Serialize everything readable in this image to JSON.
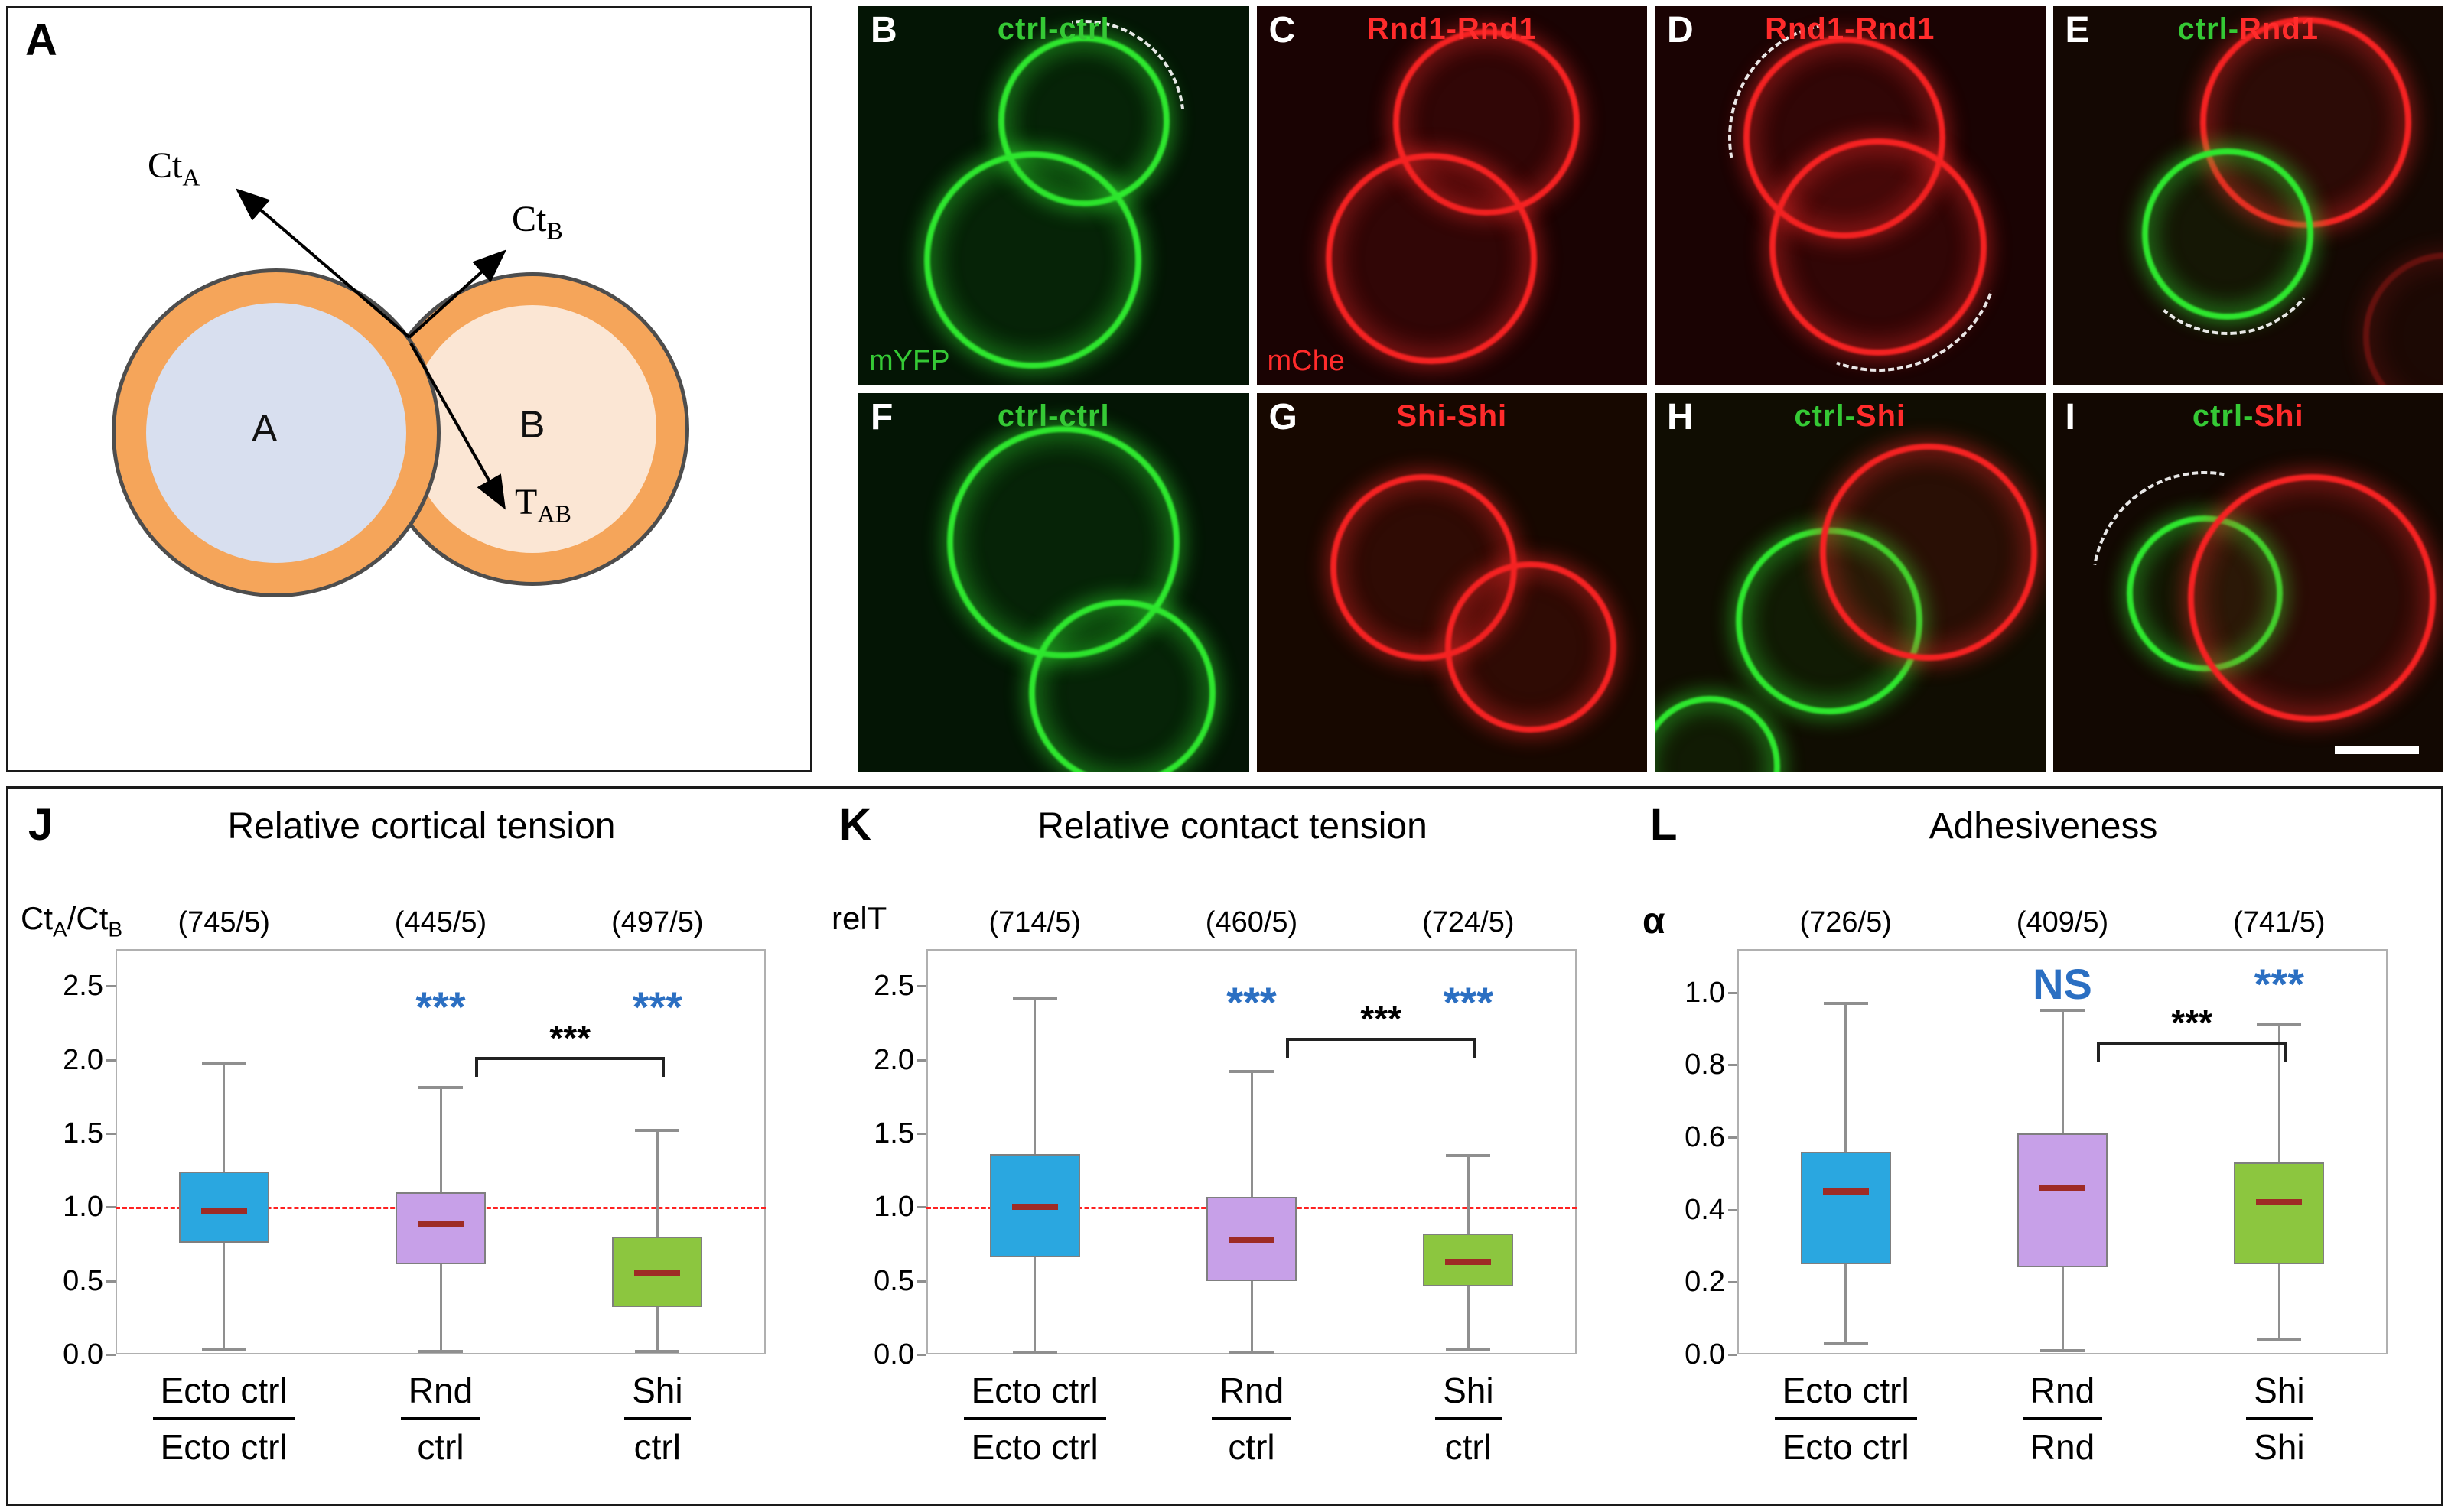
{
  "diagram": {
    "panel_letter": "A",
    "cell_a_label": "A",
    "cell_b_label": "B",
    "arrow_labels": {
      "ct_a": {
        "main": "Ct",
        "sub": "A"
      },
      "ct_b": {
        "main": "Ct",
        "sub": "B"
      },
      "t_ab": {
        "main": "T",
        "sub": "AB"
      }
    }
  },
  "micro_panels": [
    {
      "letter": "B",
      "caption_parts": [
        {
          "text": "ctrl-ctrl",
          "color": "#35C935"
        }
      ],
      "corner_label": {
        "text": "mYFP",
        "color": "#35C935"
      }
    },
    {
      "letter": "C",
      "caption_parts": [
        {
          "text": "Rnd1-Rnd1",
          "color": "#FF2B2B"
        }
      ],
      "corner_label": {
        "text": "mChe",
        "color": "#FF2B2B"
      }
    },
    {
      "letter": "D",
      "caption_parts": [
        {
          "text": "Rnd1-Rnd1",
          "color": "#FF2B2B"
        }
      ]
    },
    {
      "letter": "E",
      "caption_parts": [
        {
          "text": "ctrl",
          "color": "#35C935"
        },
        {
          "text": "-",
          "color": "#35C935"
        },
        {
          "text": "Rnd1",
          "color": "#FF2B2B"
        }
      ]
    },
    {
      "letter": "F",
      "caption_parts": [
        {
          "text": "ctrl-ctrl",
          "color": "#35C935"
        }
      ]
    },
    {
      "letter": "G",
      "caption_parts": [
        {
          "text": "Shi-Shi",
          "color": "#FF2B2B"
        }
      ]
    },
    {
      "letter": "H",
      "caption_parts": [
        {
          "text": "ctrl",
          "color": "#35C935"
        },
        {
          "text": "-",
          "color": "#35C935"
        },
        {
          "text": "Shi",
          "color": "#FF2B2B"
        }
      ]
    },
    {
      "letter": "I",
      "caption_parts": [
        {
          "text": "ctrl",
          "color": "#35C935"
        },
        {
          "text": "-",
          "color": "#35C935"
        },
        {
          "text": "Shi",
          "color": "#FF2B2B"
        }
      ],
      "has_scalebar": true
    }
  ],
  "style": {
    "sig_blue": "#2B6FC2",
    "median_red": "#9E2B25",
    "ref_red": "#FF2222",
    "box_blue": "#2AA7E0",
    "box_purple": "#C7A0E8",
    "box_green": "#8CC63F"
  },
  "chart_data": [
    {
      "id": "J",
      "panel_label": "J",
      "type": "box",
      "title": "Relative cortical tension",
      "ylabel_parts": [
        {
          "text": "Ct"
        },
        {
          "text": "A",
          "sub": true
        },
        {
          "text": "/Ct"
        },
        {
          "text": "B",
          "sub": true
        }
      ],
      "ylabel_bold": false,
      "ylim": [
        0,
        2.75
      ],
      "yticks": [
        0.0,
        0.5,
        1.0,
        1.5,
        2.0,
        2.5
      ],
      "reference_line": 1.0,
      "counts": [
        "(745/5)",
        "(445/5)",
        "(497/5)"
      ],
      "categories": [
        {
          "num": "Ecto ctrl",
          "den": "Ecto ctrl"
        },
        {
          "num": "Rnd",
          "den": "ctrl"
        },
        {
          "num": "Shi",
          "den": "ctrl"
        }
      ],
      "boxes": [
        {
          "color": "#2AA7E0",
          "lo": 0.03,
          "q1": 0.76,
          "med": 0.97,
          "q3": 1.24,
          "hi": 1.97,
          "sig": ""
        },
        {
          "color": "#C7A0E8",
          "lo": 0.02,
          "q1": 0.61,
          "med": 0.88,
          "q3": 1.1,
          "hi": 1.81,
          "sig": "***"
        },
        {
          "color": "#8CC63F",
          "lo": 0.02,
          "q1": 0.32,
          "med": 0.55,
          "q3": 0.8,
          "hi": 1.52,
          "sig": "***"
        }
      ],
      "sig_y": 2.35,
      "bracket": {
        "from": 1,
        "to": 2,
        "label": "***",
        "y": 2.02
      }
    },
    {
      "id": "K",
      "panel_label": "K",
      "type": "box",
      "title": "Relative contact tension",
      "ylabel_parts": [
        {
          "text": "relT"
        }
      ],
      "ylabel_bold": false,
      "ylim": [
        0,
        2.75
      ],
      "yticks": [
        0.0,
        0.5,
        1.0,
        1.5,
        2.0,
        2.5
      ],
      "reference_line": 1.0,
      "counts": [
        "(714/5)",
        "(460/5)",
        "(724/5)"
      ],
      "categories": [
        {
          "num": "Ecto ctrl",
          "den": "Ecto ctrl"
        },
        {
          "num": "Rnd",
          "den": "ctrl"
        },
        {
          "num": "Shi",
          "den": "ctrl"
        }
      ],
      "boxes": [
        {
          "color": "#2AA7E0",
          "lo": 0.01,
          "q1": 0.66,
          "med": 1.0,
          "q3": 1.36,
          "hi": 2.42,
          "sig": ""
        },
        {
          "color": "#C7A0E8",
          "lo": 0.01,
          "q1": 0.5,
          "med": 0.78,
          "q3": 1.07,
          "hi": 1.92,
          "sig": "***"
        },
        {
          "color": "#8CC63F",
          "lo": 0.03,
          "q1": 0.46,
          "med": 0.63,
          "q3": 0.82,
          "hi": 1.35,
          "sig": "***"
        }
      ],
      "sig_y": 2.38,
      "bracket": {
        "from": 1,
        "to": 2,
        "label": "***",
        "y": 2.15
      }
    },
    {
      "id": "L",
      "panel_label": "L",
      "type": "box",
      "title": "Adhesiveness",
      "ylabel_parts": [
        {
          "text": "α"
        }
      ],
      "ylabel_bold": true,
      "ylim": [
        0,
        1.12
      ],
      "yticks": [
        0.0,
        0.2,
        0.4,
        0.6,
        0.8,
        1.0
      ],
      "reference_line": null,
      "counts": [
        "(726/5)",
        "(409/5)",
        "(741/5)"
      ],
      "categories": [
        {
          "num": "Ecto ctrl",
          "den": "Ecto ctrl"
        },
        {
          "num": "Rnd",
          "den": "Rnd"
        },
        {
          "num": "Shi",
          "den": "Shi"
        }
      ],
      "boxes": [
        {
          "color": "#2AA7E0",
          "lo": 0.03,
          "q1": 0.25,
          "med": 0.45,
          "q3": 0.56,
          "hi": 0.97,
          "sig": ""
        },
        {
          "color": "#C7A0E8",
          "lo": 0.01,
          "q1": 0.24,
          "med": 0.46,
          "q3": 0.61,
          "hi": 0.95,
          "sig": "NS"
        },
        {
          "color": "#8CC63F",
          "lo": 0.04,
          "q1": 0.25,
          "med": 0.42,
          "q3": 0.53,
          "hi": 0.91,
          "sig": "***"
        }
      ],
      "sig_y": 1.02,
      "bracket": {
        "from": 1,
        "to": 2,
        "label": "***",
        "y": 0.865
      }
    }
  ]
}
